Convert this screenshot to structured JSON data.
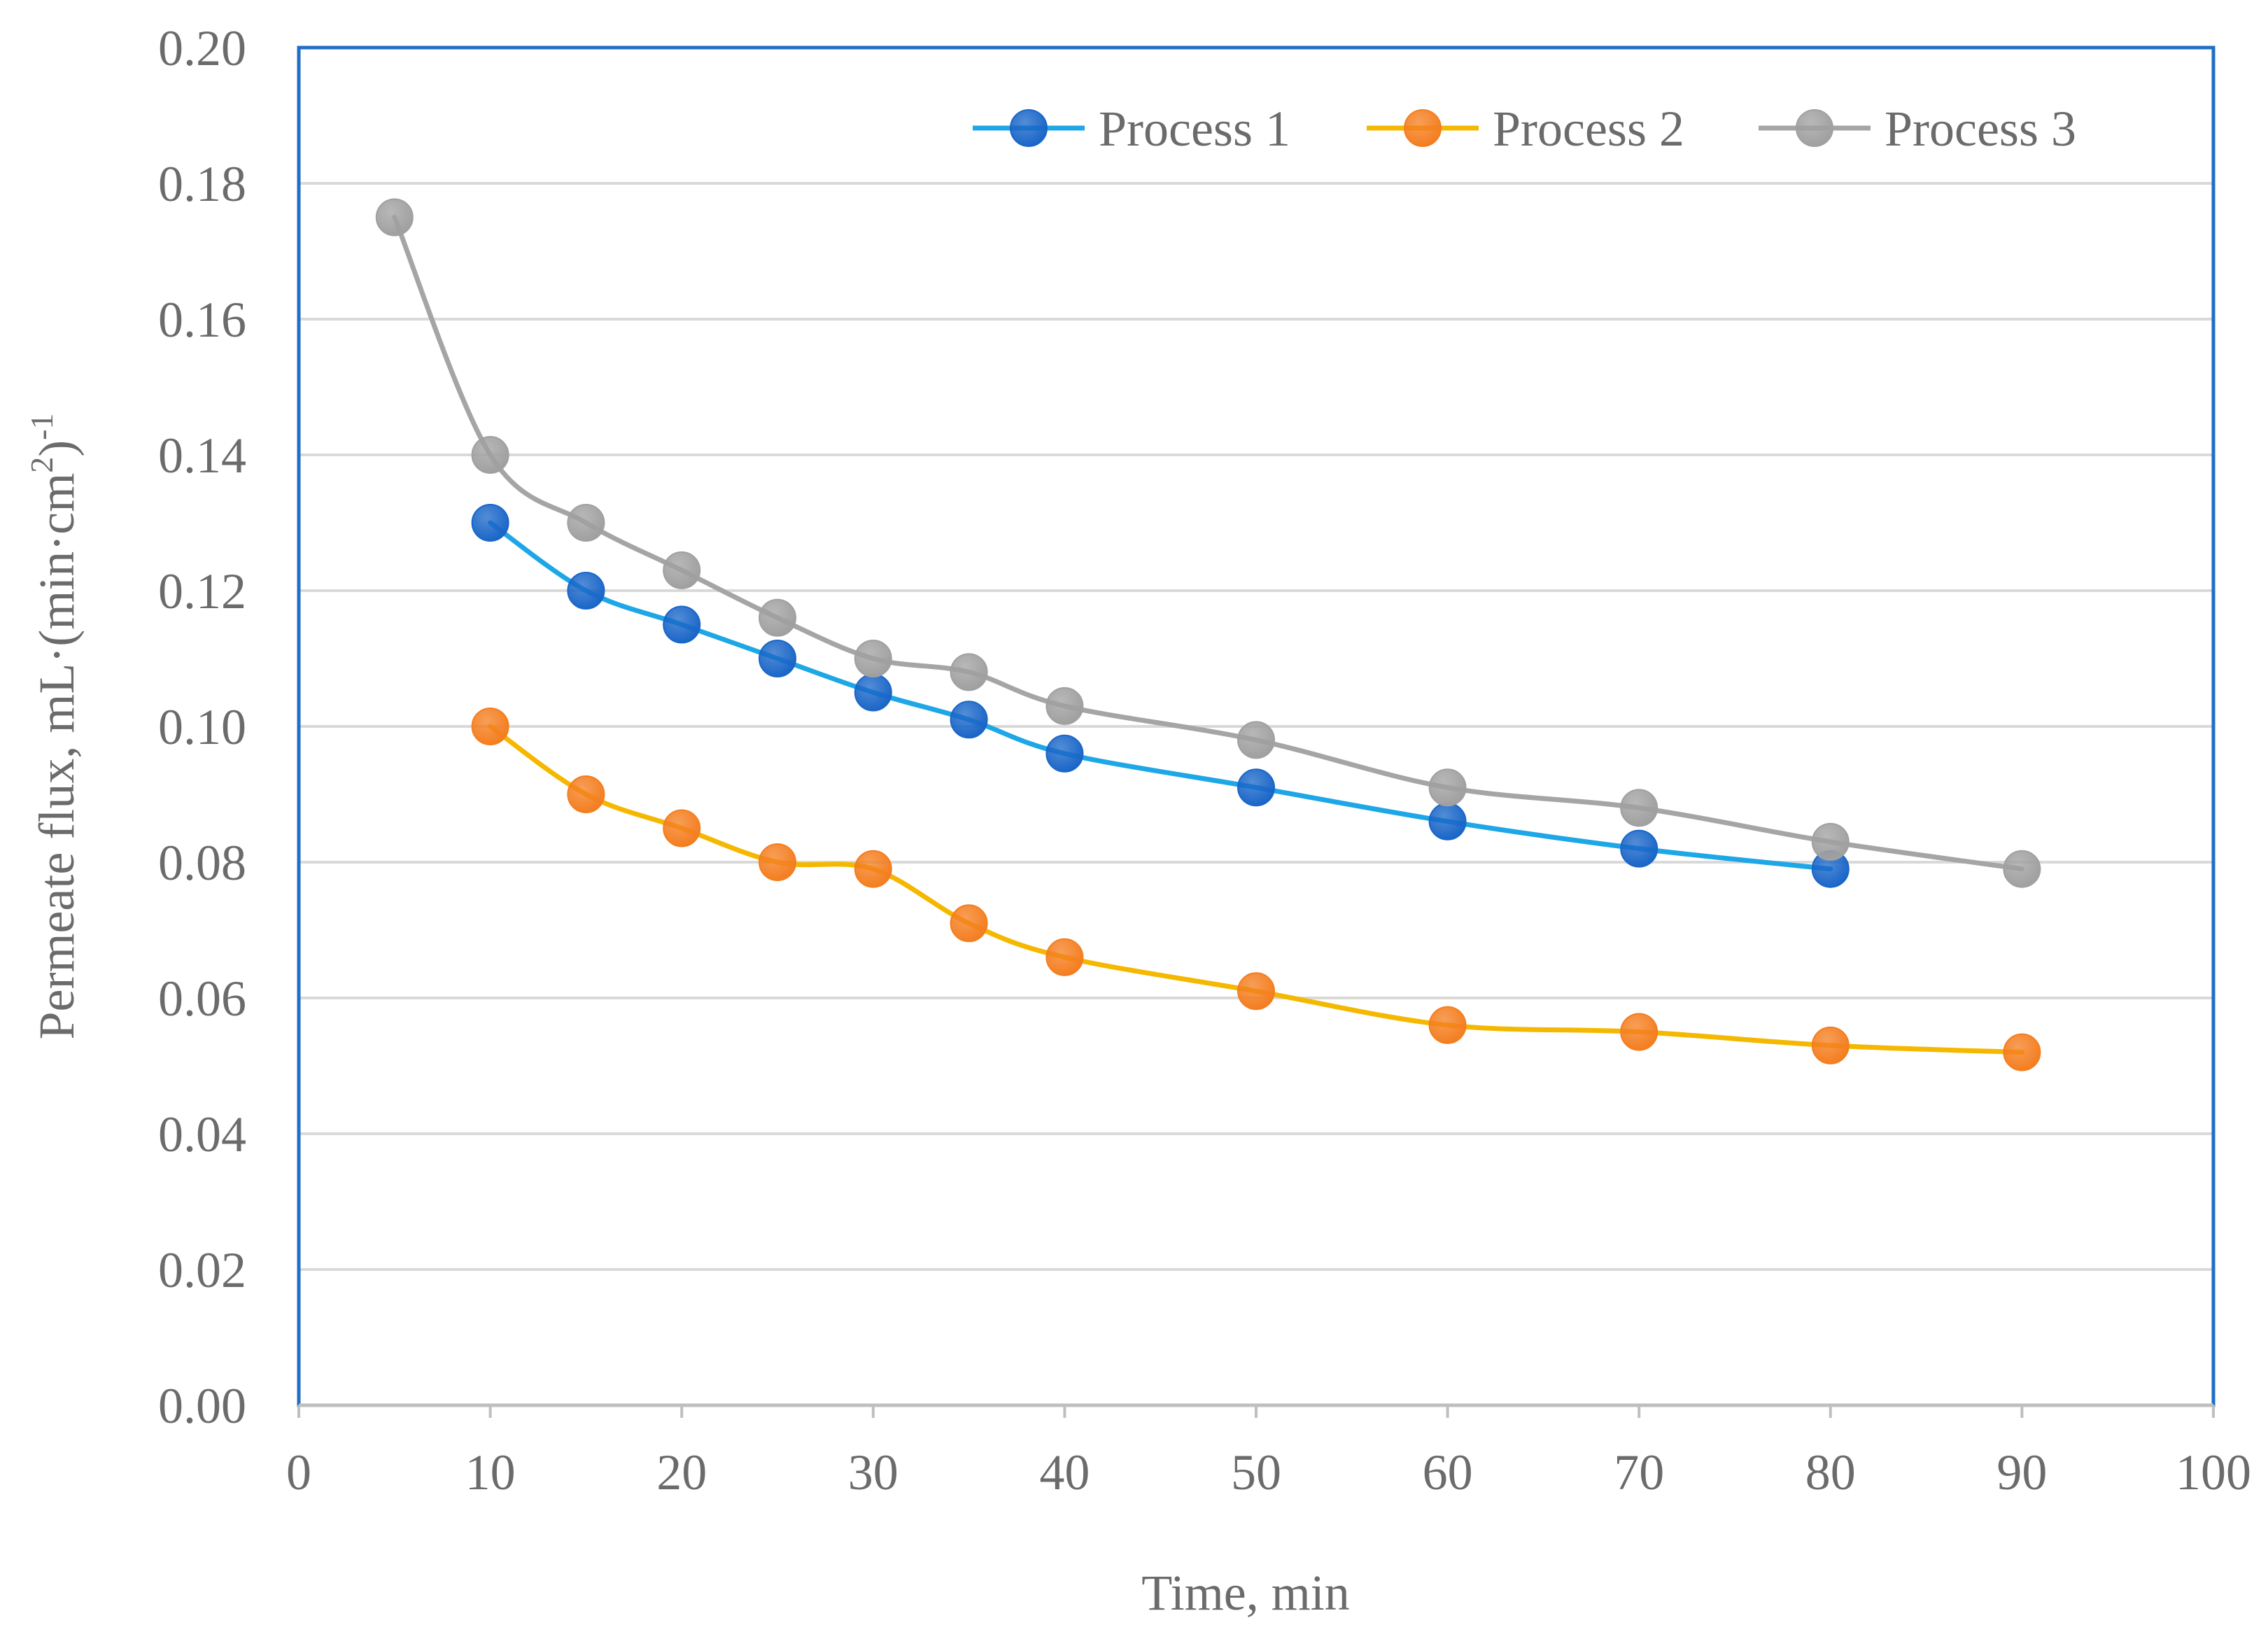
{
  "chart_data": {
    "type": "line",
    "title": "",
    "xlabel": "Time, min",
    "ylabel": {
      "main": "Permeate flux, mL·(min·cm",
      "sup1": "2",
      "close": ")",
      "sup2": "-1"
    },
    "xlim": [
      0,
      100
    ],
    "ylim": [
      0,
      0.2
    ],
    "x_ticks": [
      "0",
      "10",
      "20",
      "30",
      "40",
      "50",
      "60",
      "70",
      "80",
      "90",
      "100"
    ],
    "y_ticks": [
      "0.00",
      "0.02",
      "0.04",
      "0.06",
      "0.08",
      "0.10",
      "0.12",
      "0.14",
      "0.16",
      "0.18",
      "0.20"
    ],
    "grid": true,
    "legend_position": "top-right",
    "series": [
      {
        "name": "Process 1",
        "line_color": "#1ea7e6",
        "marker_color": "#1a66c8",
        "x": [
          10,
          15,
          20,
          25,
          30,
          35,
          40,
          50,
          60,
          70,
          80
        ],
        "y": [
          0.13,
          0.12,
          0.115,
          0.11,
          0.105,
          0.101,
          0.096,
          0.091,
          0.086,
          0.082,
          0.079
        ]
      },
      {
        "name": "Process 2",
        "line_color": "#f5b800",
        "marker_color": "#f47e20",
        "x": [
          10,
          15,
          20,
          25,
          30,
          35,
          40,
          50,
          60,
          70,
          80,
          90
        ],
        "y": [
          0.1,
          0.09,
          0.085,
          0.08,
          0.079,
          0.071,
          0.066,
          0.061,
          0.056,
          0.055,
          0.053,
          0.052
        ]
      },
      {
        "name": "Process 3",
        "line_color": "#a5a5a5",
        "marker_color": "#a0a0a0",
        "x": [
          5,
          10,
          15,
          20,
          25,
          30,
          35,
          40,
          50,
          60,
          70,
          80,
          90
        ],
        "y": [
          0.175,
          0.14,
          0.13,
          0.123,
          0.116,
          0.11,
          0.108,
          0.103,
          0.098,
          0.091,
          0.088,
          0.083,
          0.079
        ]
      }
    ],
    "colors": {
      "plot_border": "#1f6fc5",
      "grid": "#d9d9d9",
      "axis": "#bfbfbf",
      "text": "#6b6b6b"
    }
  }
}
